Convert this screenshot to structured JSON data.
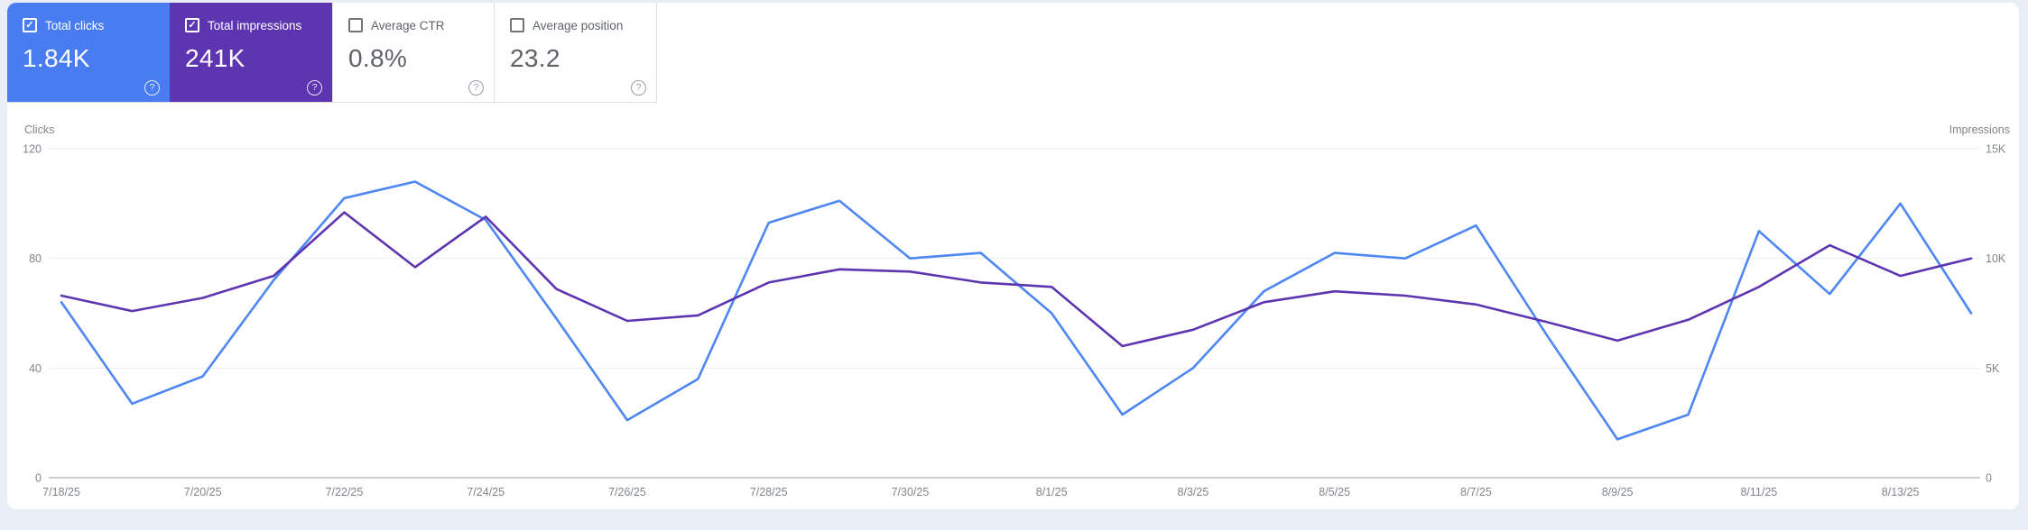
{
  "icons": {
    "check": "✓",
    "help": "?"
  },
  "colors": {
    "page_background": "#e9edf6",
    "card_background": "#ffffff",
    "clicks_accent": "#487cf0",
    "impressions_accent": "#5e35b1",
    "clicks_line": "#4e86f3",
    "impressions_line": "#5e35b1"
  },
  "metric_cards": [
    {
      "label": "Total clicks",
      "value": "1.84K",
      "checked": true,
      "selected": true,
      "color": "#487cf0"
    },
    {
      "label": "Total impressions",
      "value": "241K",
      "checked": true,
      "selected": true,
      "color": "#5e35b1"
    },
    {
      "label": "Average CTR",
      "value": "0.8%",
      "checked": false,
      "selected": false,
      "color": "#ffffff"
    },
    {
      "label": "Average position",
      "value": "23.2",
      "checked": false,
      "selected": false,
      "color": "#ffffff"
    }
  ],
  "chart_data": {
    "type": "line",
    "title": "",
    "grid": true,
    "legend_position": "none",
    "x": [
      "7/18/25",
      "7/19/25",
      "7/20/25",
      "7/21/25",
      "7/22/25",
      "7/23/25",
      "7/24/25",
      "7/25/25",
      "7/26/25",
      "7/27/25",
      "7/28/25",
      "7/29/25",
      "7/30/25",
      "7/31/25",
      "8/1/25",
      "8/2/25",
      "8/3/25",
      "8/4/25",
      "8/5/25",
      "8/6/25",
      "8/7/25",
      "8/8/25",
      "8/9/25",
      "8/10/25",
      "8/11/25",
      "8/12/25",
      "8/13/25",
      "8/14/25"
    ],
    "x_tick_labels": [
      "7/18/25",
      "7/20/25",
      "7/22/25",
      "7/24/25",
      "7/26/25",
      "7/28/25",
      "7/30/25",
      "8/1/25",
      "8/3/25",
      "8/5/25",
      "8/7/25",
      "8/9/25",
      "8/11/25",
      "8/13/25"
    ],
    "series": [
      {
        "name": "Total clicks",
        "axis": "left",
        "color": "#4e86f3",
        "values": [
          64,
          27,
          37,
          72,
          102,
          108,
          94,
          58,
          21,
          36,
          93,
          101,
          80,
          82,
          60,
          23,
          40,
          68,
          82,
          80,
          92,
          52,
          14,
          23,
          90,
          67,
          100,
          60
        ]
      },
      {
        "name": "Total impressions",
        "axis": "right",
        "color": "#5e35b1",
        "values": [
          8300,
          7600,
          8200,
          9200,
          12100,
          9600,
          11900,
          8600,
          7150,
          7400,
          8900,
          9500,
          9400,
          8900,
          8700,
          6000,
          6750,
          8000,
          8500,
          8300,
          7900,
          7100,
          6250,
          7200,
          8700,
          10600,
          9200,
          10000
        ]
      }
    ],
    "left_axis": {
      "title": "Clicks",
      "range": [
        0,
        120
      ],
      "tick_values": [
        0,
        40,
        80,
        120
      ],
      "tick_labels": [
        "0",
        "40",
        "80",
        "120"
      ]
    },
    "right_axis": {
      "title": "Impressions",
      "range": [
        0,
        15000
      ],
      "tick_values": [
        0,
        5000,
        10000,
        15000
      ],
      "tick_labels": [
        "0",
        "5K",
        "10K",
        "15K"
      ]
    }
  }
}
